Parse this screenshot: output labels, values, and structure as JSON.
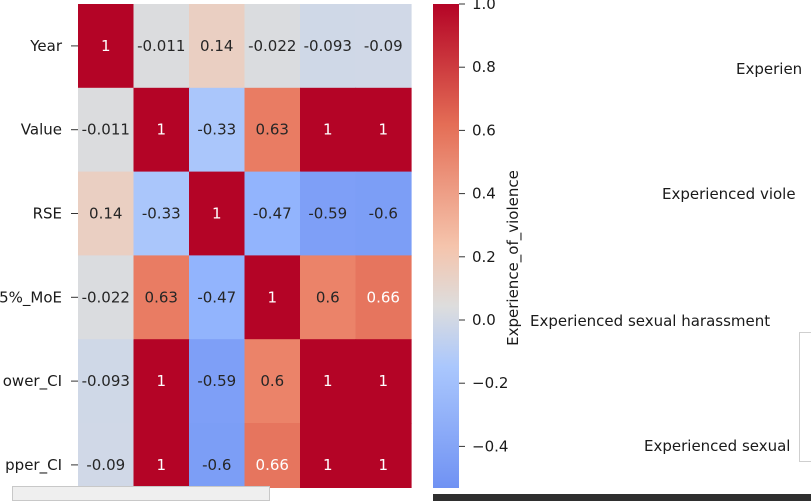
{
  "chart_data": {
    "type": "heatmap",
    "rows": [
      "Year",
      "Value",
      "RSE",
      "5%_MoE",
      "ower_CI",
      "pper_CI"
    ],
    "matrix": [
      [
        1,
        -0.011,
        0.14,
        -0.022,
        -0.093,
        -0.09
      ],
      [
        -0.011,
        1,
        -0.33,
        0.63,
        1,
        1
      ],
      [
        0.14,
        -0.33,
        1,
        -0.47,
        -0.59,
        -0.6
      ],
      [
        -0.022,
        0.63,
        -0.47,
        1,
        0.6,
        0.66
      ],
      [
        -0.093,
        1,
        -0.59,
        0.6,
        1,
        1
      ],
      [
        -0.09,
        1,
        -0.6,
        0.66,
        1,
        1
      ]
    ],
    "cell_labels": [
      [
        "1",
        "-0.011",
        "0.14",
        "-0.022",
        "-0.093",
        "-0.09"
      ],
      [
        "-0.011",
        "1",
        "-0.33",
        "0.63",
        "1",
        "1"
      ],
      [
        "0.14",
        "-0.33",
        "1",
        "-0.47",
        "-0.59",
        "-0.6"
      ],
      [
        "-0.022",
        "0.63",
        "-0.47",
        "1",
        "0.6",
        "0.66"
      ],
      [
        "-0.093",
        "1",
        "-0.59",
        "0.6",
        "1",
        "1"
      ],
      [
        "-0.09",
        "1",
        "-0.6",
        "0.66",
        "1",
        "1"
      ]
    ],
    "colormap": "coolwarm",
    "vmin": -0.6,
    "vmax": 1.0,
    "colorbar": {
      "ticks": [
        "1.0",
        "0.8",
        "0.6",
        "0.4",
        "0.2",
        "0.0",
        "−0.2",
        "−0.4"
      ],
      "tick_values": [
        1.0,
        0.8,
        0.6,
        0.4,
        0.2,
        0.0,
        -0.2,
        -0.4
      ],
      "label": "Experience_of_violence"
    }
  },
  "right_panel": {
    "labels": [
      "Experien",
      "Experienced viole",
      "Experienced sexual harassment",
      "Experienced sexual"
    ]
  }
}
